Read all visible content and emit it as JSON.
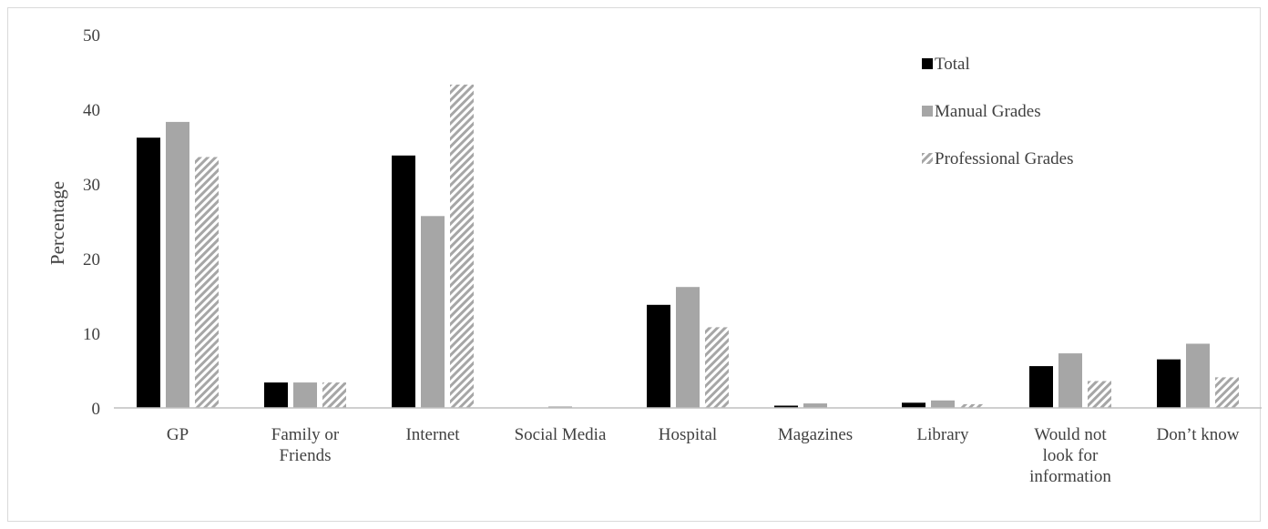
{
  "chart_data": {
    "type": "bar",
    "title": "",
    "xlabel": "",
    "ylabel": "Percentage",
    "ylim": [
      0,
      50
    ],
    "yticks": [
      "0",
      "10",
      "20",
      "30",
      "40",
      "50"
    ],
    "grid": false,
    "legend_position": "top-right",
    "categories": [
      [
        "GP"
      ],
      [
        "Family or",
        "Friends"
      ],
      [
        "Internet"
      ],
      [
        "Social Media"
      ],
      [
        "Hospital"
      ],
      [
        "Magazines"
      ],
      [
        "Library"
      ],
      [
        "Would not",
        "look for",
        "information"
      ],
      [
        "Don’t know"
      ]
    ],
    "series": [
      {
        "name": "Total",
        "color": "#000000",
        "pattern": "solid",
        "values": [
          36.2,
          3.4,
          33.8,
          0.0,
          13.8,
          0.3,
          0.7,
          5.6,
          6.5
        ]
      },
      {
        "name": "Manual Grades",
        "color": "#a6a6a6",
        "pattern": "solid",
        "values": [
          38.3,
          3.4,
          25.7,
          0.2,
          16.2,
          0.6,
          1.0,
          7.3,
          8.6
        ]
      },
      {
        "name": "Professional Grades",
        "color": "#a6a6a6",
        "pattern": "diagonal-hatch",
        "values": [
          33.6,
          3.4,
          43.3,
          0.0,
          10.8,
          0.0,
          0.5,
          3.6,
          4.1
        ]
      }
    ]
  }
}
